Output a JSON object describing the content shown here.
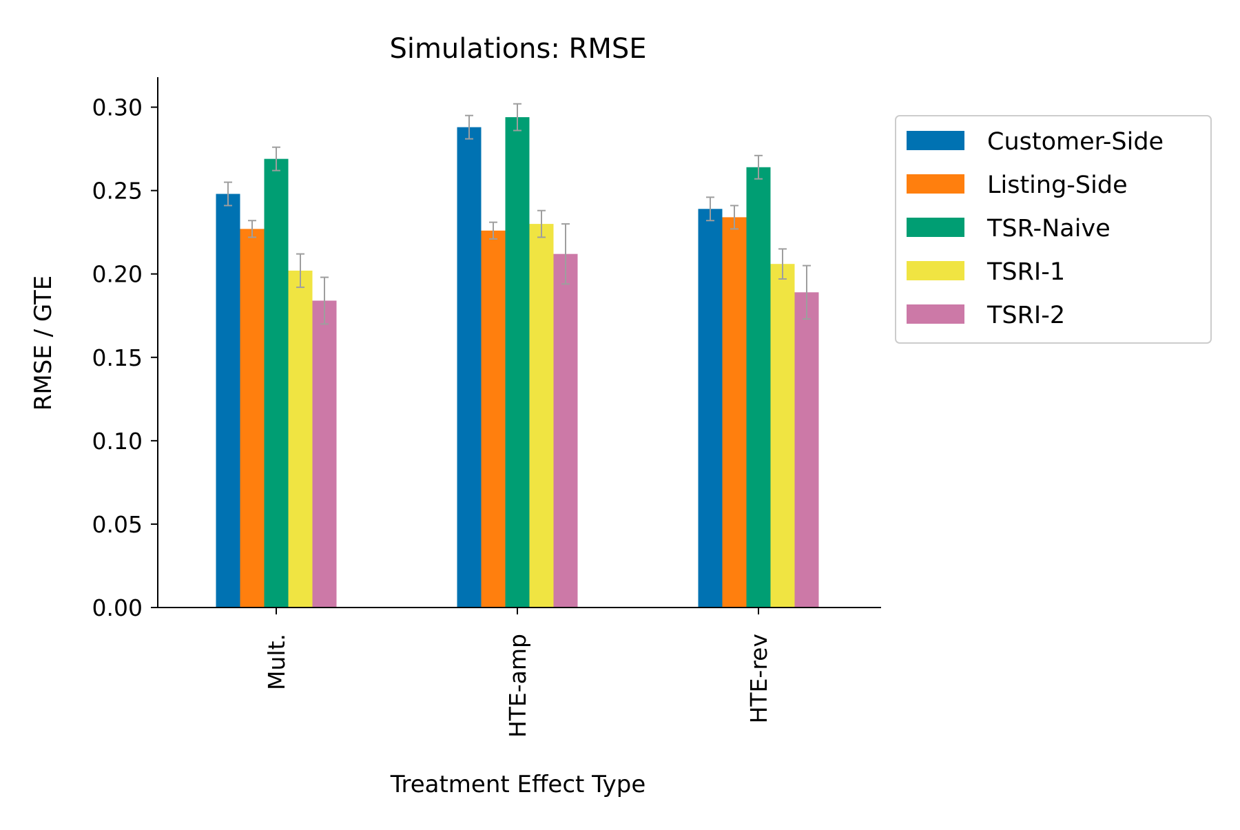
{
  "chart_data": {
    "type": "bar",
    "title": "Simulations: RMSE",
    "xlabel": "Treatment Effect Type",
    "ylabel": "RMSE / GTE",
    "ylim": [
      0,
      0.318
    ],
    "yticks": [
      "0.00",
      "0.05",
      "0.10",
      "0.15",
      "0.20",
      "0.25",
      "0.30"
    ],
    "categories": [
      "Mult.",
      "HTE-amp",
      "HTE-rev"
    ],
    "legend_position": "upper right, outside plot",
    "grid": false,
    "error_bar_color": "#9e9e9e",
    "series": [
      {
        "name": "Customer-Side",
        "color": "#0072b2",
        "values": [
          0.248,
          0.288,
          0.239
        ],
        "errors": [
          0.007,
          0.007,
          0.007
        ]
      },
      {
        "name": "Listing-Side",
        "color": "#ff7f0e",
        "values": [
          0.227,
          0.226,
          0.234
        ],
        "errors": [
          0.005,
          0.005,
          0.007
        ]
      },
      {
        "name": "TSR-Naive",
        "color": "#009e73",
        "values": [
          0.269,
          0.294,
          0.264
        ],
        "errors": [
          0.007,
          0.008,
          0.007
        ]
      },
      {
        "name": "TSRI-1",
        "color": "#f0e442",
        "values": [
          0.202,
          0.23,
          0.206
        ],
        "errors": [
          0.01,
          0.008,
          0.009
        ]
      },
      {
        "name": "TSRI-2",
        "color": "#cc79a7",
        "values": [
          0.184,
          0.212,
          0.189
        ],
        "errors": [
          0.014,
          0.018,
          0.016
        ]
      }
    ]
  }
}
